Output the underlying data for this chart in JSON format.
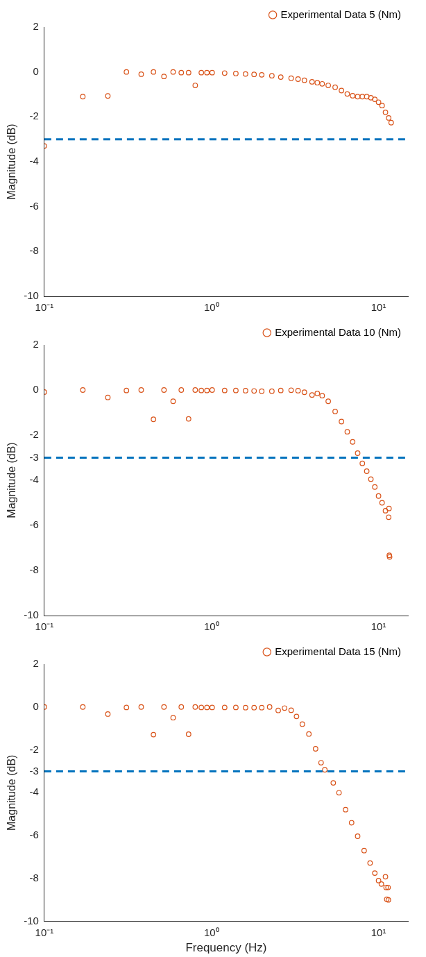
{
  "chart_data": [
    {
      "type": "scatter",
      "ylabel": "Magnitude (dB)",
      "log": "x",
      "marker": "circle",
      "legend": "top right",
      "grid": false,
      "xlim": [
        0.1,
        15
      ],
      "xticks": [
        {
          "value": 0.1,
          "label": "10⁻¹"
        },
        {
          "value": 1,
          "label": "10⁰"
        },
        {
          "value": 10,
          "label": "10¹"
        }
      ],
      "ylim": [
        -10,
        2
      ],
      "yticks": [
        -10,
        -8,
        -6,
        -4,
        -2,
        0,
        2
      ],
      "ref_lines": [
        {
          "axis": "y",
          "value": -3,
          "label": null,
          "color": "#0072bd",
          "line_style": "dashed"
        }
      ],
      "x": [
        0.1,
        0.17,
        0.24,
        0.31,
        0.38,
        0.45,
        0.52,
        0.59,
        0.66,
        0.73,
        0.8,
        0.87,
        0.94,
        1.01,
        1.2,
        1.4,
        1.6,
        1.8,
        2.0,
        2.3,
        2.6,
        3.0,
        3.3,
        3.6,
        4.0,
        4.3,
        4.6,
        5.0,
        5.5,
        6.0,
        6.5,
        7.0,
        7.5,
        8.0,
        8.5,
        9.0,
        9.5,
        10.0,
        10.5,
        11.0,
        11.5,
        11.9
      ],
      "series": [
        {
          "name": "Experimental Data 5 (Nm)",
          "color": "#d95319",
          "values": [
            -3.3,
            -1.1,
            -1.07,
            0,
            -0.1,
            0,
            -0.2,
            0,
            -0.03,
            -0.03,
            -0.6,
            -0.03,
            -0.03,
            -0.03,
            -0.05,
            -0.07,
            -0.09,
            -0.11,
            -0.13,
            -0.17,
            -0.23,
            -0.28,
            -0.32,
            -0.37,
            -0.44,
            -0.48,
            -0.53,
            -0.6,
            -0.68,
            -0.83,
            -0.98,
            -1.06,
            -1.1,
            -1.1,
            -1.1,
            -1.15,
            -1.22,
            -1.35,
            -1.5,
            -1.8,
            -2.05,
            -2.26
          ]
        }
      ]
    },
    {
      "type": "scatter",
      "ylabel": "Magnitude (dB)",
      "log": "x",
      "marker": "circle",
      "legend": "top right",
      "grid": false,
      "xlim": [
        0.1,
        15
      ],
      "xticks": [
        {
          "value": 0.1,
          "label": "10⁻¹"
        },
        {
          "value": 1,
          "label": "10⁰"
        },
        {
          "value": 10,
          "label": "10¹"
        }
      ],
      "ylim": [
        -10,
        2
      ],
      "yticks": [
        -10,
        -8,
        -6,
        -4,
        -3,
        -2,
        0,
        2
      ],
      "ref_lines": [
        {
          "axis": "y",
          "value": -3,
          "label": null,
          "color": "#0072bd",
          "line_style": "dashed"
        }
      ],
      "x": [
        0.1,
        0.17,
        0.24,
        0.31,
        0.38,
        0.45,
        0.52,
        0.59,
        0.66,
        0.73,
        0.8,
        0.87,
        0.94,
        1.01,
        1.2,
        1.4,
        1.6,
        1.8,
        2.0,
        2.3,
        2.6,
        3.0,
        3.3,
        3.6,
        4.0,
        4.3,
        4.6,
        5.0,
        5.5,
        6.0,
        6.5,
        7.0,
        7.5,
        8.0,
        8.5,
        9.0,
        9.5,
        10.0,
        10.5,
        11.0,
        11.5,
        11.55,
        11.6,
        11.65
      ],
      "series": [
        {
          "name": "Experimental Data 10 (Nm)",
          "color": "#d95319",
          "values": [
            -0.09,
            0,
            -0.33,
            -0.02,
            0,
            -1.3,
            0,
            -0.5,
            0,
            -1.28,
            0,
            -0.02,
            -0.02,
            0,
            -0.02,
            -0.02,
            -0.03,
            -0.04,
            -0.05,
            -0.05,
            -0.02,
            -0.01,
            -0.03,
            -0.1,
            -0.22,
            -0.15,
            -0.25,
            -0.5,
            -0.95,
            -1.4,
            -1.85,
            -2.3,
            -2.8,
            -3.25,
            -3.6,
            -3.95,
            -4.3,
            -4.7,
            -5.0,
            -5.35,
            -5.64,
            -5.25,
            -7.33,
            -7.4
          ]
        }
      ]
    },
    {
      "type": "scatter",
      "xlabel": "Frequency (Hz)",
      "ylabel": "Magnitude (dB)",
      "log": "x",
      "marker": "circle",
      "legend": "top right",
      "grid": false,
      "xlim": [
        0.1,
        15
      ],
      "xticks": [
        {
          "value": 0.1,
          "label": "10⁻¹"
        },
        {
          "value": 1,
          "label": "10⁰"
        },
        {
          "value": 10,
          "label": "10¹"
        }
      ],
      "ylim": [
        -10,
        2
      ],
      "yticks": [
        -10,
        -8,
        -6,
        -4,
        -3,
        -2,
        0,
        2
      ],
      "ref_lines": [
        {
          "axis": "y",
          "value": -3,
          "label": null,
          "color": "#0072bd",
          "line_style": "dashed"
        }
      ],
      "x": [
        0.1,
        0.17,
        0.24,
        0.31,
        0.38,
        0.45,
        0.52,
        0.59,
        0.66,
        0.73,
        0.8,
        0.87,
        0.94,
        1.01,
        1.2,
        1.4,
        1.6,
        1.8,
        2.0,
        2.23,
        2.51,
        2.74,
        3.0,
        3.23,
        3.5,
        3.83,
        4.2,
        4.53,
        4.77,
        5.36,
        5.8,
        6.35,
        6.9,
        7.5,
        8.2,
        8.9,
        9.5,
        10.0,
        10.4,
        11.0,
        11.1,
        11.4,
        11.2,
        11.45
      ],
      "series": [
        {
          "name": "Experimental Data 15 (Nm)",
          "color": "#d95319",
          "values": [
            0,
            0,
            -0.33,
            -0.02,
            0,
            -1.29,
            0,
            -0.5,
            0,
            -1.27,
            0,
            -0.02,
            -0.02,
            -0.02,
            -0.02,
            -0.02,
            -0.03,
            -0.03,
            -0.03,
            0,
            -0.16,
            -0.05,
            -0.15,
            -0.44,
            -0.8,
            -1.26,
            -1.95,
            -2.6,
            -2.93,
            -3.54,
            -4.0,
            -4.79,
            -5.4,
            -6.03,
            -6.7,
            -7.28,
            -7.75,
            -8.1,
            -8.26,
            -7.92,
            -8.42,
            -8.42,
            -8.97,
            -9.0
          ]
        }
      ]
    }
  ]
}
